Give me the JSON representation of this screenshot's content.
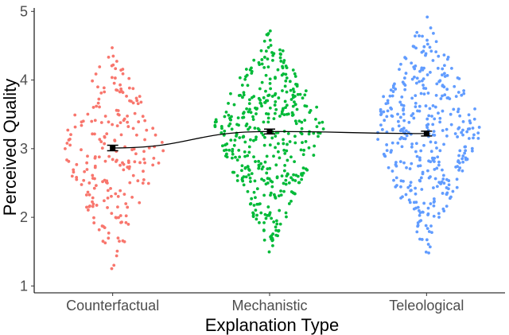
{
  "chart_data": {
    "type": "scatter",
    "subtype": "beeswarm-with-mean-line",
    "xlabel": "Explanation Type",
    "ylabel": "Perceived Quality",
    "categories": [
      "Counterfactual",
      "Mechanistic",
      "Teleological"
    ],
    "ylim": [
      0.9,
      5.05
    ],
    "yticks": [
      1,
      2,
      3,
      4,
      5
    ],
    "grid": false,
    "legend": "none",
    "series": [
      {
        "name": "Counterfactual",
        "color": "#f8766d",
        "n_points": 220,
        "y_min": 1.25,
        "y_max": 4.55,
        "y_center": 3.05,
        "max_halfwidth": 0.35
      },
      {
        "name": "Mechanistic",
        "color": "#00ba38",
        "n_points": 430,
        "y_min": 1.45,
        "y_max": 4.75,
        "y_center": 3.35,
        "max_halfwidth": 0.37
      },
      {
        "name": "Teleological",
        "color": "#619cff",
        "n_points": 380,
        "y_min": 1.4,
        "y_max": 4.98,
        "y_center": 3.35,
        "max_halfwidth": 0.37
      }
    ],
    "means": [
      {
        "category": "Counterfactual",
        "mean": 3.01,
        "se": 0.04
      },
      {
        "category": "Mechanistic",
        "mean": 3.25,
        "se": 0.035
      },
      {
        "category": "Teleological",
        "mean": 3.22,
        "se": 0.035
      }
    ],
    "mean_line_color": "#000000"
  }
}
